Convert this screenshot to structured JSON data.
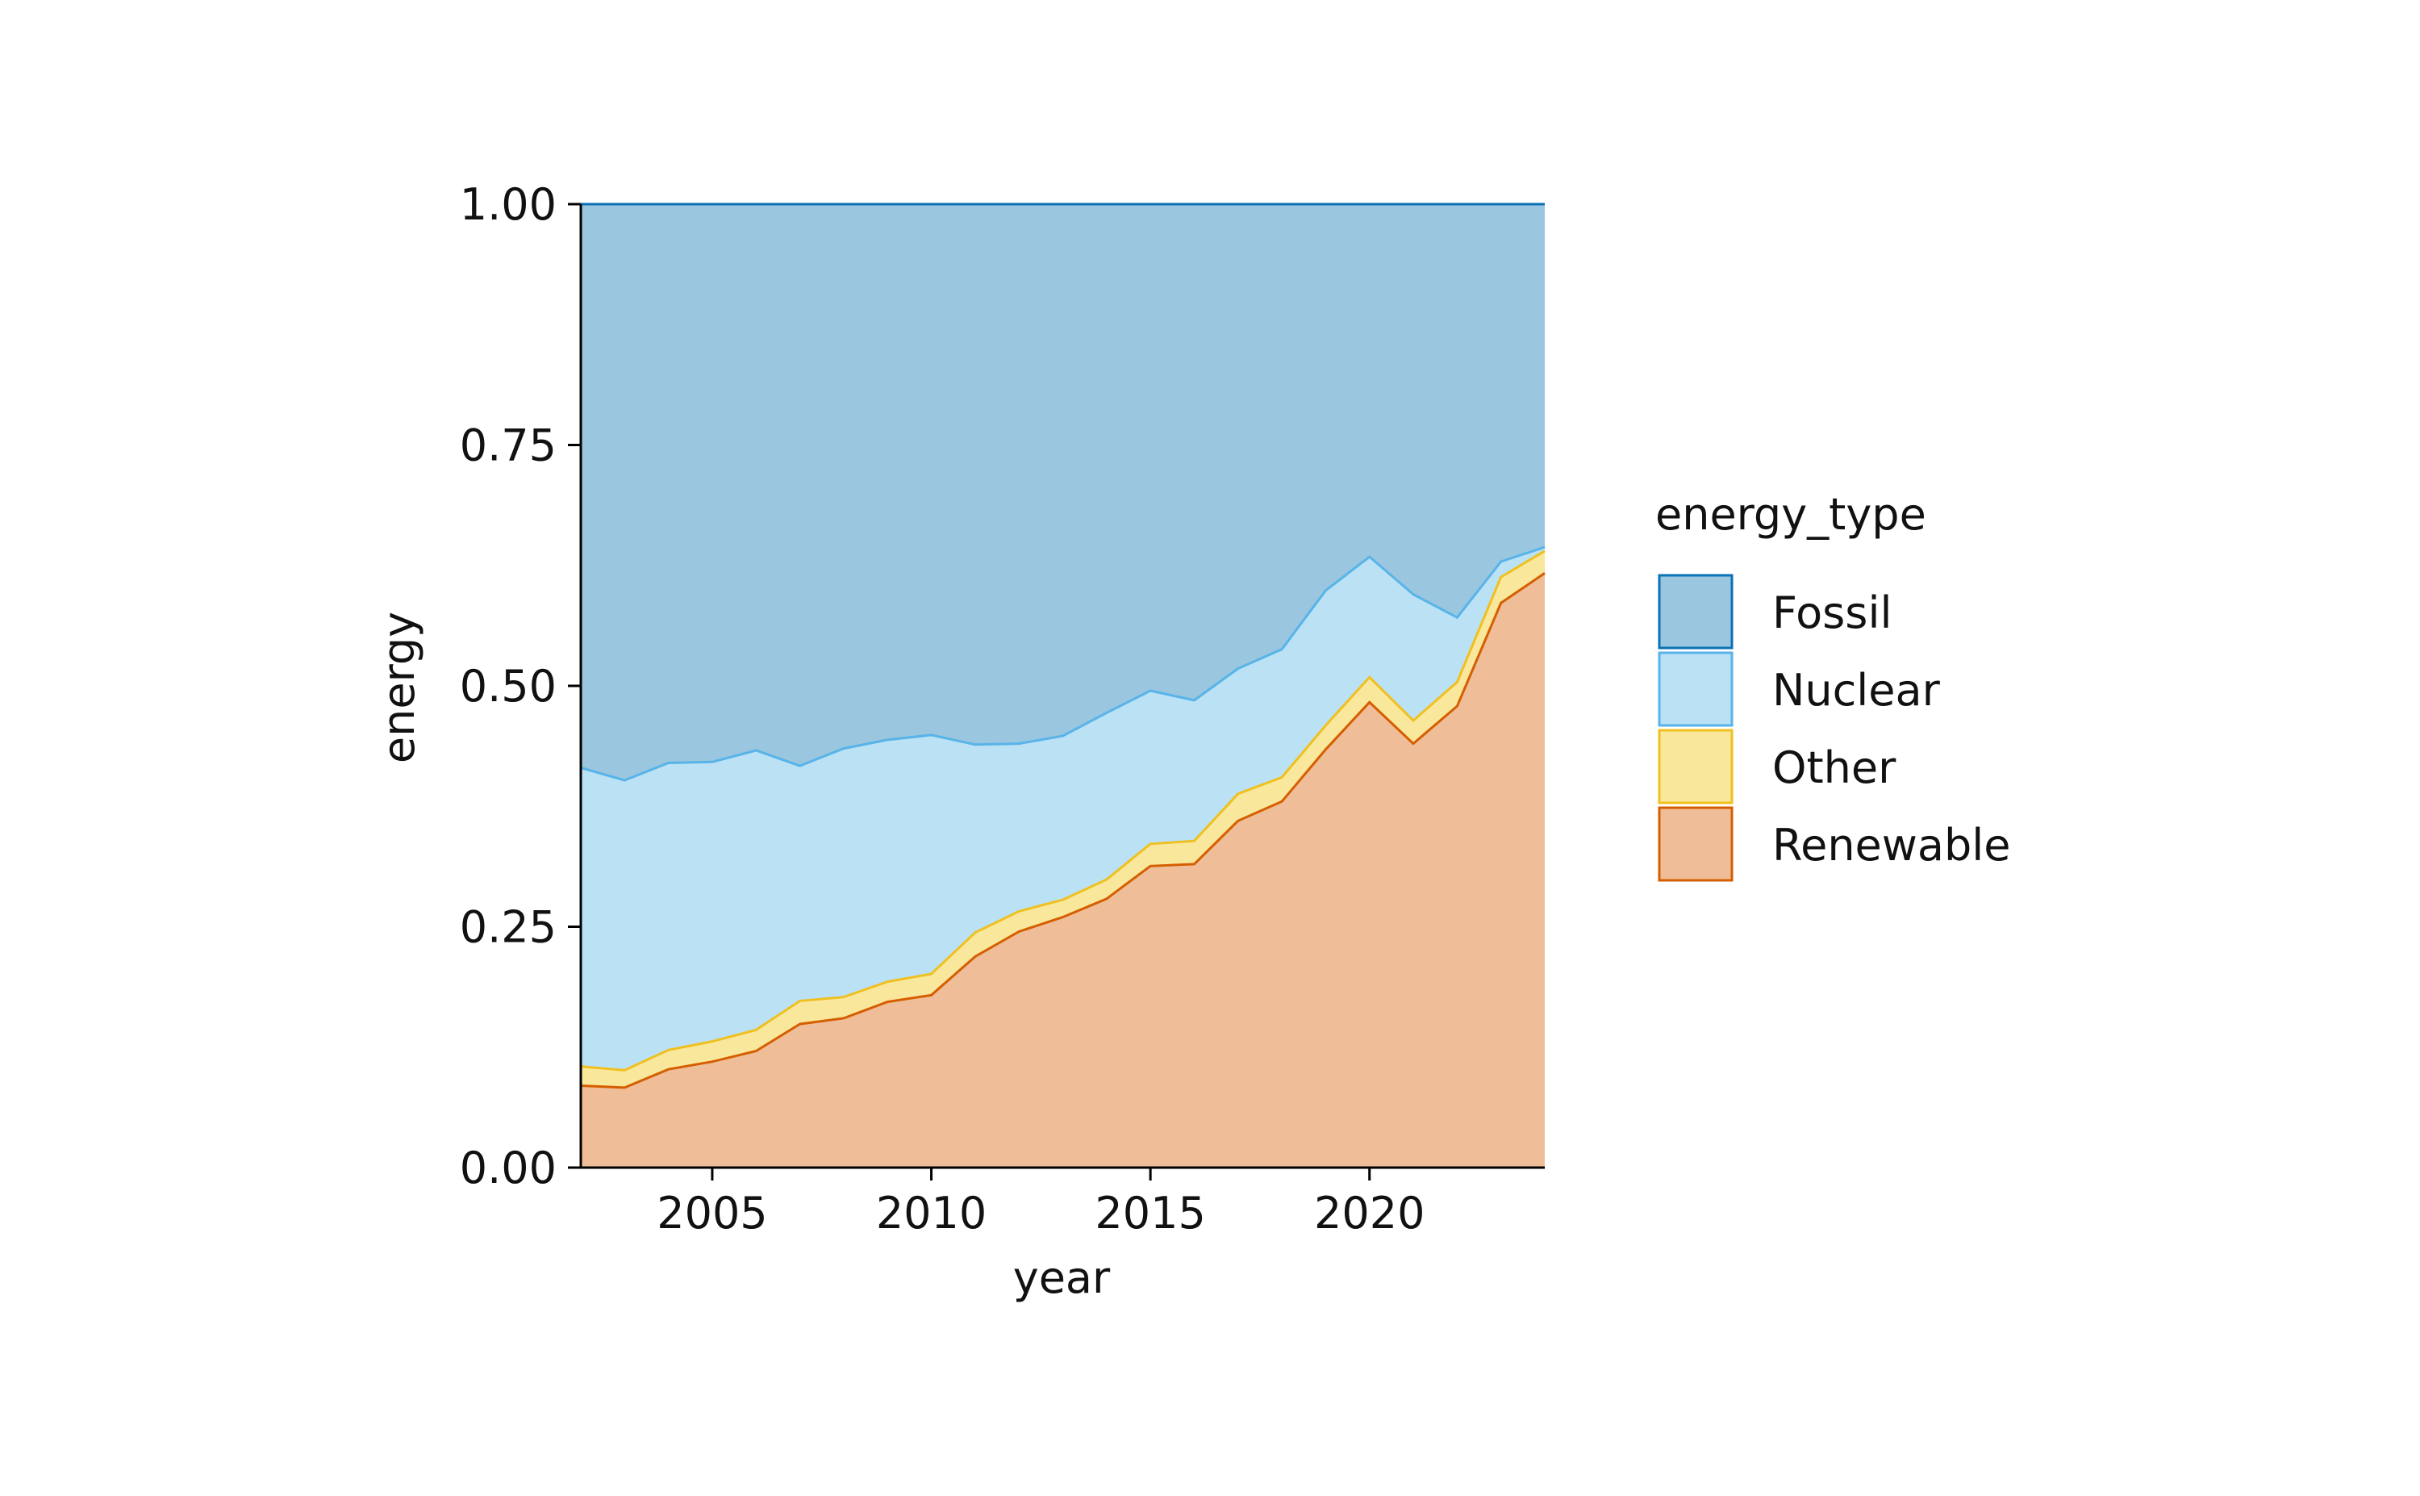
{
  "chart_data": {
    "type": "area",
    "stacked": true,
    "normalized": true,
    "xlabel": "year",
    "ylabel": "energy",
    "xlim": [
      2002,
      2024
    ],
    "ylim": [
      0,
      1
    ],
    "x_ticks": [
      "2005",
      "2010",
      "2015",
      "2020"
    ],
    "y_ticks": [
      "0.00",
      "0.25",
      "0.50",
      "0.75",
      "1.00"
    ],
    "legend_title": "energy_type",
    "legend_position": "right",
    "grid": false,
    "x": [
      2002,
      2003,
      2004,
      2005,
      2006,
      2007,
      2008,
      2009,
      2010,
      2011,
      2012,
      2013,
      2014,
      2015,
      2016,
      2017,
      2018,
      2019,
      2020,
      2021,
      2022,
      2023,
      2024
    ],
    "series": [
      {
        "name": "Fossil",
        "fill": "#9ac6df",
        "stroke": "#0a72b5",
        "values": [
          0.585,
          0.598,
          0.58,
          0.579,
          0.567,
          0.583,
          0.565,
          0.556,
          0.551,
          0.561,
          0.56,
          0.552,
          0.528,
          0.505,
          0.515,
          0.482,
          0.462,
          0.401,
          0.366,
          0.405,
          0.429,
          0.371,
          0.356
        ]
      },
      {
        "name": "Nuclear",
        "fill": "#bbe1f5",
        "stroke": "#58b4e8",
        "values": [
          0.31,
          0.301,
          0.298,
          0.29,
          0.29,
          0.244,
          0.258,
          0.251,
          0.248,
          0.195,
          0.174,
          0.17,
          0.173,
          0.159,
          0.146,
          0.13,
          0.133,
          0.14,
          0.125,
          0.131,
          0.067,
          0.016,
          0.004
        ]
      },
      {
        "name": "Other",
        "fill": "#f9e79c",
        "stroke": "#f0c020",
        "values": [
          0.02,
          0.018,
          0.02,
          0.021,
          0.022,
          0.024,
          0.022,
          0.021,
          0.022,
          0.025,
          0.021,
          0.018,
          0.02,
          0.023,
          0.024,
          0.028,
          0.025,
          0.025,
          0.026,
          0.024,
          0.025,
          0.027,
          0.023
        ]
      },
      {
        "name": "Renewable",
        "fill": "#efbe98",
        "stroke": "#d55e00",
        "values": [
          0.085,
          0.083,
          0.102,
          0.11,
          0.121,
          0.149,
          0.155,
          0.172,
          0.179,
          0.219,
          0.245,
          0.26,
          0.279,
          0.313,
          0.315,
          0.36,
          0.38,
          0.434,
          0.483,
          0.44,
          0.479,
          0.586,
          0.617
        ]
      }
    ]
  }
}
